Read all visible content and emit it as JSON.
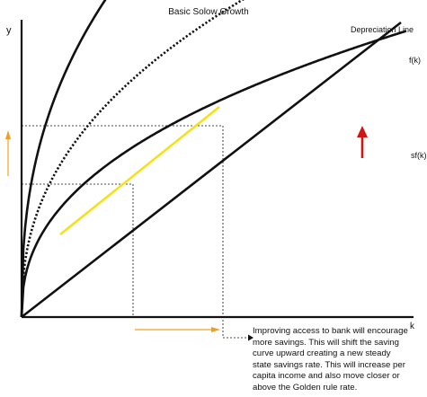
{
  "title": "Basic Solow Growth",
  "axes": {
    "y_label": "y",
    "x_label": "k"
  },
  "curves": {
    "depreciation_label": "Depreciation Line",
    "production_label": "f(k)",
    "savings_label": "sf(k)"
  },
  "note_lines": [
    "Improving access to bank will encourage",
    "more savings. This will shift the saving",
    "curve upward creating a new steady",
    "state savings rate. This will increase per",
    "capita income and also move closer or",
    "above the Golden rule rate."
  ],
  "colors": {
    "curve": "#111111",
    "tangent_line": "#f5e11a",
    "shift_arrow": "#d11414",
    "orange_arrow": "#f0a020"
  }
}
